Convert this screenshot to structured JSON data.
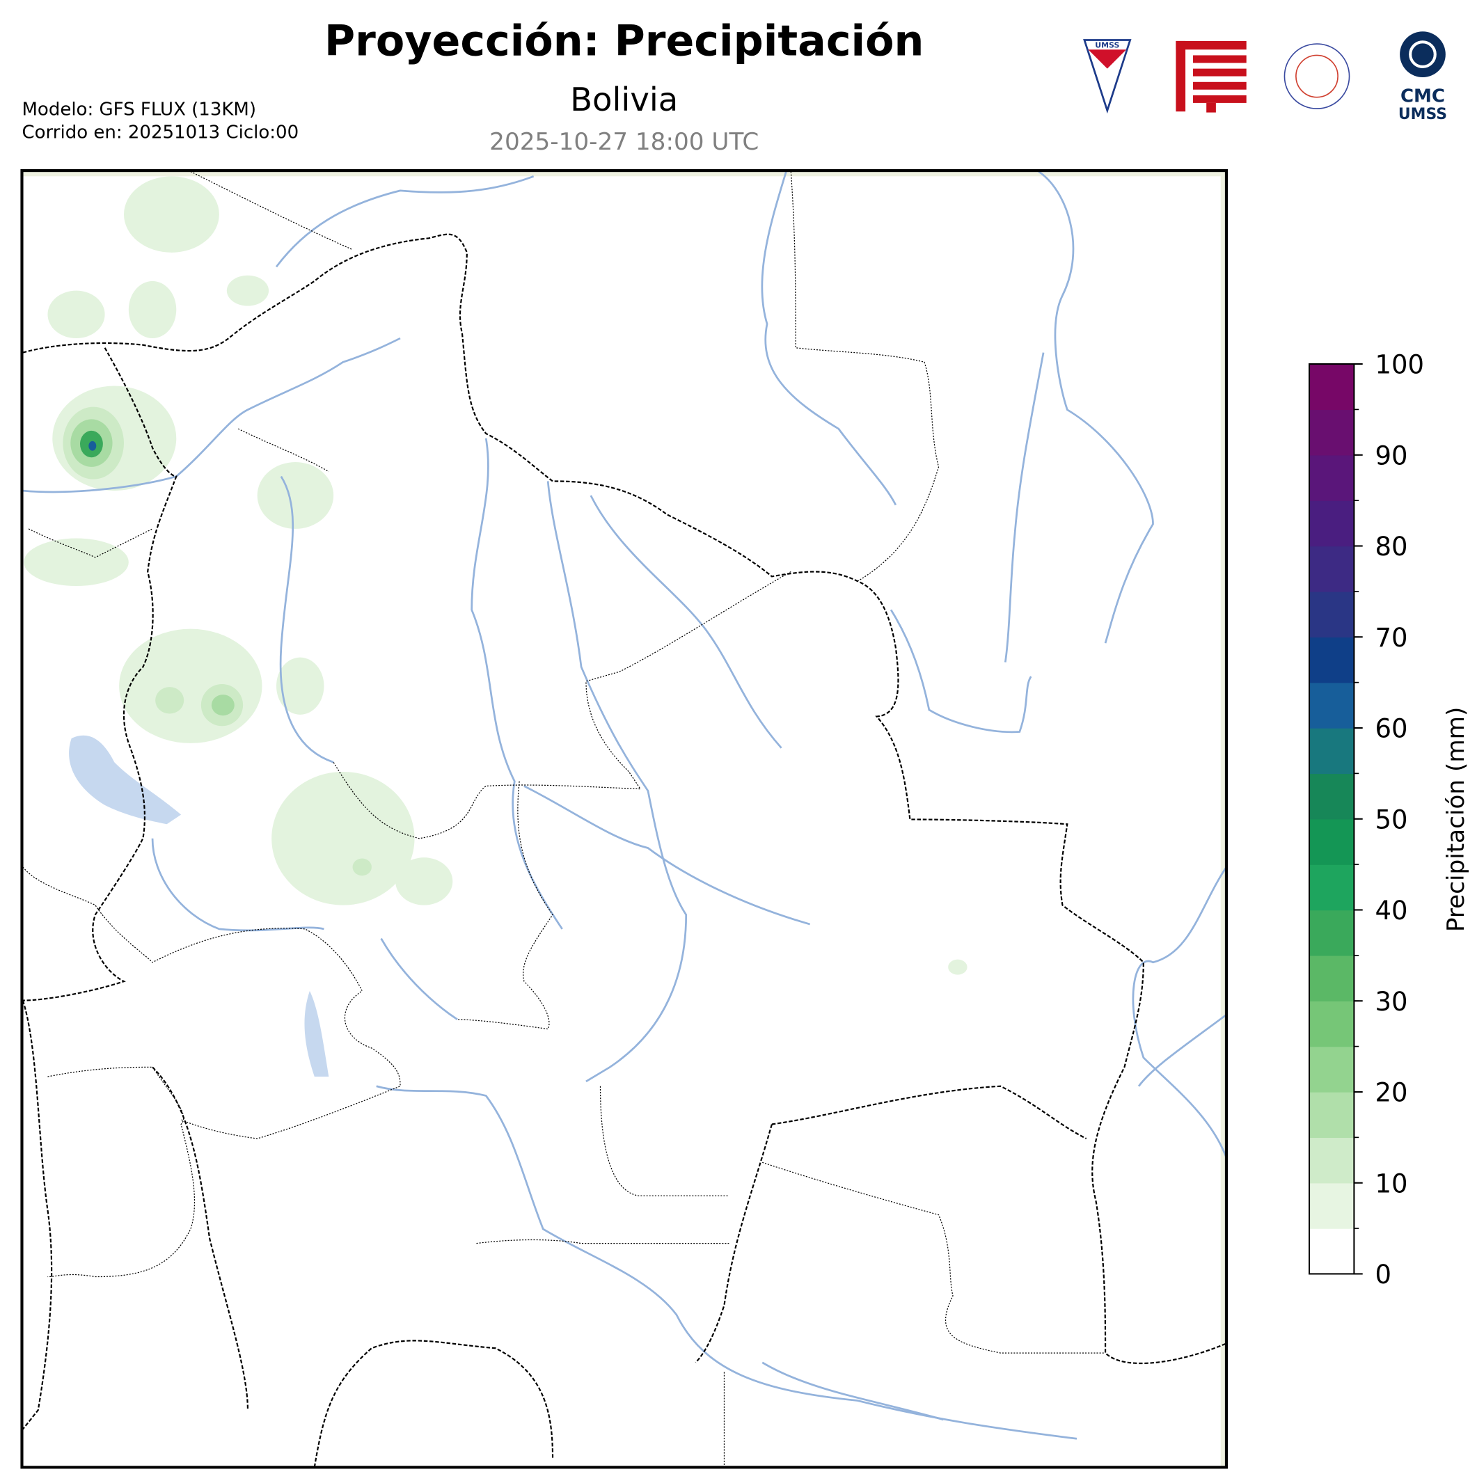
{
  "header": {
    "title": "Proyección: Precipitación",
    "subtitle": "Bolivia",
    "valid_time": "2025-10-27 18:00 UTC",
    "model": "Modelo: GFS FLUX (13KM)",
    "run": "Corrido en: 20251013 Ciclo:00"
  },
  "logos": {
    "umss": "UMSS",
    "cmc": "CMC",
    "cmc_sub": "UMSS"
  },
  "colorbar": {
    "label": "Precipitación (mm)",
    "ticks": [
      0,
      10,
      20,
      30,
      40,
      50,
      60,
      70,
      80,
      90,
      100
    ],
    "levels": [
      0,
      5,
      10,
      15,
      20,
      25,
      30,
      35,
      40,
      45,
      50,
      55,
      60,
      65,
      70,
      75,
      80,
      85,
      90,
      95,
      100
    ],
    "colors": [
      "#ffffff",
      "#e7f5e2",
      "#cfebc9",
      "#b0dfaa",
      "#93d38f",
      "#76c677",
      "#5bb866",
      "#3aa95b",
      "#1ea55e",
      "#149655",
      "#178758",
      "#18787e",
      "#175e9a",
      "#0f3f88",
      "#2a3685",
      "#3d2a84",
      "#4a1e80",
      "#5a167a",
      "#690f70",
      "#770767"
    ]
  }
}
